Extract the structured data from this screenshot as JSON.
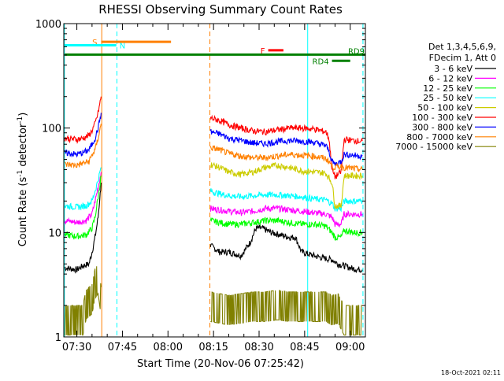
{
  "chart_data": {
    "type": "line",
    "title": "RHESSI Observing Summary Count Rates",
    "xlabel": "Start Time (20-Nov-06 07:25:42)",
    "ylabel_main": "Count Rate (s",
    "ylabel_sup1": "-1",
    "ylabel_mid": " detector",
    "ylabel_sup2": "-1",
    "ylabel_end": ")",
    "y_scale": "log",
    "ylim": [
      1,
      1000
    ],
    "xlim_min": [
      445.7,
      545
    ],
    "x_ticks": [
      {
        "label": "07:30",
        "min": 450
      },
      {
        "label": "07:45",
        "min": 465
      },
      {
        "label": "08:00",
        "min": 480
      },
      {
        "label": "08:15",
        "min": 495
      },
      {
        "label": "08:30",
        "min": 510
      },
      {
        "label": "08:45",
        "min": 525
      },
      {
        "label": "09:00",
        "min": 540
      }
    ],
    "y_ticks": [
      {
        "label": "1",
        "value": 1
      },
      {
        "label": "10",
        "value": 10
      },
      {
        "label": "100",
        "value": 100
      },
      {
        "label": "1000",
        "value": 1000
      }
    ],
    "legend_header": [
      "Det 1,3,4,5,6,9,",
      "FDecim 1, Att 0"
    ],
    "legend_position": "right",
    "series": [
      {
        "name": "3 - 6 keV",
        "color": "#000000",
        "segments": [
          [
            [
              446,
              4.6
            ],
            [
              450,
              4.4
            ],
            [
              452,
              4.8
            ],
            [
              454,
              5.0
            ],
            [
              455,
              6.5
            ],
            [
              456,
              9
            ],
            [
              457,
              14
            ],
            [
              458,
              30
            ]
          ],
          [
            [
              494,
              7.5
            ],
            [
              497,
              6.5
            ],
            [
              500,
              6.5
            ],
            [
              504,
              6.0
            ],
            [
              507,
              8
            ],
            [
              509,
              11
            ],
            [
              511,
              11
            ],
            [
              514,
              10
            ],
            [
              517,
              9.5
            ],
            [
              520,
              9
            ],
            [
              522,
              9
            ],
            [
              524,
              6.5
            ],
            [
              528,
              6.0
            ],
            [
              531,
              5.7
            ],
            [
              534,
              5.5
            ],
            [
              536,
              5.0
            ],
            [
              538,
              4.8
            ],
            [
              540,
              4.6
            ],
            [
              541,
              4.5
            ],
            [
              544,
              4.4
            ]
          ]
        ]
      },
      {
        "name": "6 - 12 keV",
        "color": "#ff00ff",
        "segments": [
          [
            [
              446,
              13
            ],
            [
              450,
              12.5
            ],
            [
              453,
              13
            ],
            [
              455,
              15
            ],
            [
              456,
              20
            ],
            [
              457,
              27
            ],
            [
              458,
              38
            ]
          ],
          [
            [
              494,
              17
            ],
            [
              497,
              16.5
            ],
            [
              500,
              16
            ],
            [
              504,
              15.5
            ],
            [
              508,
              16
            ],
            [
              512,
              17
            ],
            [
              516,
              17
            ],
            [
              520,
              16.5
            ],
            [
              524,
              16
            ],
            [
              528,
              15.5
            ],
            [
              532,
              15
            ],
            [
              534,
              14
            ],
            [
              535,
              12
            ],
            [
              537,
              12
            ],
            [
              538,
              15
            ],
            [
              541,
              15
            ],
            [
              544,
              15
            ]
          ]
        ]
      },
      {
        "name": "12 - 25 keV",
        "color": "#00ff00",
        "segments": [
          [
            [
              446,
              9.5
            ],
            [
              450,
              9.2
            ],
            [
              453,
              9.5
            ],
            [
              455,
              11
            ],
            [
              456,
              14
            ],
            [
              457,
              22
            ],
            [
              458,
              35
            ]
          ],
          [
            [
              494,
              13
            ],
            [
              497,
              12.5
            ],
            [
              500,
              12
            ],
            [
              504,
              12
            ],
            [
              508,
              12.5
            ],
            [
              512,
              13
            ],
            [
              516,
              13
            ],
            [
              520,
              12.5
            ],
            [
              524,
              12
            ],
            [
              528,
              12
            ],
            [
              532,
              11.5
            ],
            [
              534,
              10
            ],
            [
              535,
              9
            ],
            [
              537,
              9
            ],
            [
              538,
              10.5
            ],
            [
              541,
              10
            ],
            [
              544,
              10
            ]
          ]
        ]
      },
      {
        "name": "25 - 50 keV",
        "color": "#00ffff",
        "segments": [
          [
            [
              446,
              18
            ],
            [
              450,
              17.5
            ],
            [
              453,
              18
            ],
            [
              455,
              20
            ],
            [
              456,
              25
            ],
            [
              457,
              32
            ],
            [
              458,
              42
            ]
          ],
          [
            [
              494,
              25
            ],
            [
              497,
              23.5
            ],
            [
              500,
              22.5
            ],
            [
              504,
              22
            ],
            [
              508,
              22.5
            ],
            [
              512,
              23
            ],
            [
              516,
              23
            ],
            [
              520,
              22.5
            ],
            [
              524,
              22
            ],
            [
              528,
              21
            ],
            [
              532,
              20.5
            ],
            [
              534,
              19
            ],
            [
              535,
              17
            ],
            [
              537,
              17
            ],
            [
              538,
              20
            ],
            [
              541,
              20
            ],
            [
              544,
              20
            ]
          ]
        ]
      },
      {
        "name": "50 - 100 keV",
        "color": "#cccc00",
        "segments": [
          [
            [
              494,
              45
            ],
            [
              497,
              42
            ],
            [
              500,
              38
            ],
            [
              504,
              36
            ],
            [
              508,
              38
            ],
            [
              512,
              42
            ],
            [
              516,
              44
            ],
            [
              520,
              42
            ],
            [
              524,
              39
            ],
            [
              528,
              38
            ],
            [
              532,
              37
            ],
            [
              534,
              30
            ],
            [
              535,
              18
            ],
            [
              537,
              18
            ],
            [
              538,
              35
            ],
            [
              541,
              35
            ],
            [
              544,
              35
            ]
          ]
        ]
      },
      {
        "name": "100 - 300 keV",
        "color": "#ff0000",
        "segments": [
          [
            [
              446,
              80
            ],
            [
              450,
              78
            ],
            [
              452,
              80
            ],
            [
              454,
              85
            ],
            [
              455,
              95
            ],
            [
              456,
              110
            ],
            [
              457,
              140
            ],
            [
              458,
              200
            ]
          ],
          [
            [
              494,
              125
            ],
            [
              497,
              118
            ],
            [
              500,
              108
            ],
            [
              504,
              100
            ],
            [
              508,
              94
            ],
            [
              512,
              92
            ],
            [
              516,
              96
            ],
            [
              520,
              100
            ],
            [
              524,
              100
            ],
            [
              528,
              98
            ],
            [
              532,
              92
            ],
            [
              533,
              80
            ],
            [
              534,
              40
            ],
            [
              535,
              34
            ],
            [
              537,
              38
            ],
            [
              538,
              78
            ],
            [
              541,
              76
            ],
            [
              544,
              75
            ]
          ]
        ]
      },
      {
        "name": "300 - 800 keV",
        "color": "#0000ff",
        "segments": [
          [
            [
              446,
              58
            ],
            [
              450,
              56
            ],
            [
              452,
              58
            ],
            [
              454,
              62
            ],
            [
              455,
              70
            ],
            [
              456,
              80
            ],
            [
              457,
              100
            ],
            [
              458,
              140
            ]
          ],
          [
            [
              494,
              92
            ],
            [
              497,
              88
            ],
            [
              500,
              80
            ],
            [
              504,
              76
            ],
            [
              508,
              72
            ],
            [
              512,
              71
            ],
            [
              516,
              74
            ],
            [
              520,
              76
            ],
            [
              524,
              75
            ],
            [
              528,
              73
            ],
            [
              532,
              68
            ],
            [
              533,
              60
            ],
            [
              534,
              48
            ],
            [
              535,
              45
            ],
            [
              537,
              48
            ],
            [
              538,
              56
            ],
            [
              541,
              55
            ],
            [
              544,
              54
            ]
          ]
        ]
      },
      {
        "name": "800 - 7000 keV",
        "color": "#ff8000",
        "segments": [
          [
            [
              446,
              45
            ],
            [
              450,
              44
            ],
            [
              452,
              46
            ],
            [
              454,
              48
            ],
            [
              455,
              55
            ],
            [
              456,
              62
            ],
            [
              457,
              80
            ],
            [
              458,
              110
            ]
          ],
          [
            [
              494,
              65
            ],
            [
              497,
              62
            ],
            [
              500,
              57
            ],
            [
              504,
              54
            ],
            [
              508,
              52
            ],
            [
              512,
              52
            ],
            [
              516,
              54
            ],
            [
              520,
              56
            ],
            [
              524,
              55
            ],
            [
              528,
              54
            ],
            [
              532,
              51
            ],
            [
              533,
              48
            ],
            [
              534,
              43
            ],
            [
              535,
              42
            ],
            [
              537,
              43
            ],
            [
              538,
              42
            ],
            [
              541,
              41
            ],
            [
              544,
              40
            ]
          ]
        ]
      },
      {
        "name": "7000 - 15000 keV",
        "color": "#808000",
        "segments": [
          [
            [
              446,
              2.0
            ],
            [
              450,
              2.0
            ],
            [
              452,
              2.0
            ],
            [
              453,
              2.8
            ],
            [
              455,
              3.2
            ],
            [
              456,
              4.5
            ],
            [
              457,
              5.0
            ],
            [
              458,
              3.0
            ]
          ],
          [
            [
              494,
              2.7
            ],
            [
              497,
              2.6
            ],
            [
              500,
              2.5
            ],
            [
              504,
              2.6
            ],
            [
              508,
              2.7
            ],
            [
              512,
              2.7
            ],
            [
              516,
              2.8
            ],
            [
              520,
              2.7
            ],
            [
              524,
              2.7
            ],
            [
              528,
              2.7
            ],
            [
              532,
              2.7
            ],
            [
              534,
              2.5
            ],
            [
              536,
              2.6
            ],
            [
              538,
              2.0
            ],
            [
              540,
              2.0
            ],
            [
              544,
              2.0
            ]
          ]
        ]
      }
    ],
    "flag_lines": [
      {
        "label": "S",
        "color": "#ff8000",
        "start": 458,
        "end": 481,
        "value": 670
      },
      {
        "label": "N",
        "color": "#00ffff",
        "start": 446,
        "end": 463,
        "value": 620
      },
      {
        "label": "F",
        "color": "#ff0000",
        "start": 513,
        "end": 518,
        "value": 555
      },
      {
        "label": "RD9",
        "color": "#008000",
        "start": 446,
        "end": 545,
        "value": 505
      },
      {
        "label": "RD4",
        "color": "#008000",
        "start": 534,
        "end": 540,
        "value": 440
      }
    ],
    "day_night_lines": [
      {
        "color": "#00ffff",
        "style": "solid",
        "min": 445.9
      },
      {
        "color": "#00ffff",
        "style": "dashed",
        "min": 463.2
      },
      {
        "color": "#00ffff",
        "style": "solid",
        "min": 526
      },
      {
        "color": "#00ffff",
        "style": "dashed",
        "min": 544.2
      }
    ],
    "saa_lines": [
      {
        "color": "#ff8000",
        "style": "solid",
        "min": 458.2
      },
      {
        "color": "#ff8000",
        "style": "dashed",
        "min": 493.8
      }
    ]
  },
  "footer": {
    "timestamp": "18-Oct-2021 02:11"
  }
}
